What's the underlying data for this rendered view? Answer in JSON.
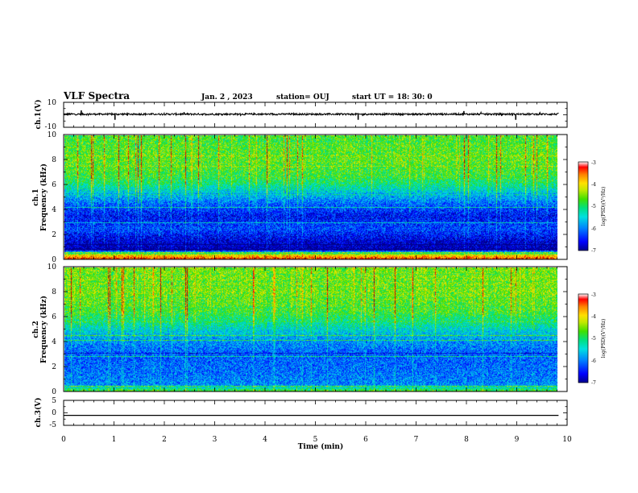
{
  "header": {
    "title": "VLF Spectra",
    "date": "Jan. 2 , 2023",
    "station": "station= OUJ",
    "start": "start UT = 18: 30: 0"
  },
  "colors": {
    "scale": [
      "#00008b",
      "#0000ff",
      "#0080ff",
      "#00e0e0",
      "#00e080",
      "#40e000",
      "#c0e800",
      "#ffe000",
      "#ff8000",
      "#ff0000",
      "#b00000"
    ]
  },
  "chart_data": [
    {
      "id": "ch1-waveform",
      "type": "line",
      "ylabel": "ch.1(V)",
      "ylim": [
        -10,
        10
      ],
      "yticks": [
        "10",
        "-10"
      ],
      "xlim": [
        0,
        10
      ],
      "baseline": 0.5,
      "spikes": [
        {
          "x": 0.35,
          "y": 3.5
        },
        {
          "x": 1.02,
          "y": -4.0
        },
        {
          "x": 5.85,
          "y": -4.0
        },
        {
          "x": 7.95,
          "y": 3.0
        },
        {
          "x": 8.98,
          "y": -4.0
        }
      ]
    },
    {
      "id": "ch1-spectrogram",
      "type": "heatmap",
      "ylabel": "ch.1",
      "ylabel2": "Frequency (kHz)",
      "xlim": [
        0,
        9.83
      ],
      "ylim": [
        0,
        10
      ],
      "yticks": [
        "0",
        "2",
        "4",
        "6",
        "8",
        "10"
      ],
      "colorbar": {
        "label": "log(PSD)(V²/Hz)",
        "range": [
          -7,
          -3
        ],
        "ticks": [
          "-3",
          "-4",
          "-5",
          "-6",
          "-7"
        ]
      },
      "profile": [
        {
          "f": 0.0,
          "v": -3.2
        },
        {
          "f": 0.4,
          "v": -4.2
        },
        {
          "f": 0.8,
          "v": -7.0
        },
        {
          "f": 1.5,
          "v": -6.8
        },
        {
          "f": 2.5,
          "v": -6.3
        },
        {
          "f": 3.5,
          "v": -6.6
        },
        {
          "f": 4.5,
          "v": -6.2
        },
        {
          "f": 5.5,
          "v": -5.6
        },
        {
          "f": 6.5,
          "v": -5.0
        },
        {
          "f": 8.0,
          "v": -4.8
        },
        {
          "f": 10.0,
          "v": -4.9
        }
      ]
    },
    {
      "id": "ch2-spectrogram",
      "type": "heatmap",
      "ylabel": "ch.2",
      "ylabel2": "Frequency (kHz)",
      "xlim": [
        0,
        9.83
      ],
      "ylim": [
        0,
        10
      ],
      "yticks": [
        "0",
        "2",
        "4",
        "6",
        "8",
        "10"
      ],
      "colorbar": {
        "label": "log(PSD)(V²/Hz)",
        "range": [
          -7,
          -3
        ],
        "ticks": [
          "-3",
          "-4",
          "-5",
          "-6",
          "-7"
        ]
      },
      "profile": [
        {
          "f": 0.0,
          "v": -4.6
        },
        {
          "f": 0.6,
          "v": -6.0
        },
        {
          "f": 1.5,
          "v": -6.1
        },
        {
          "f": 3.0,
          "v": -6.2
        },
        {
          "f": 4.3,
          "v": -5.9
        },
        {
          "f": 5.3,
          "v": -5.4
        },
        {
          "f": 6.5,
          "v": -4.9
        },
        {
          "f": 8.0,
          "v": -4.7
        },
        {
          "f": 10.0,
          "v": -4.7
        }
      ]
    },
    {
      "id": "ch3-waveform",
      "type": "line",
      "ylabel": "ch.3(V)",
      "ylim": [
        -5,
        5
      ],
      "yticks": [
        "5",
        "0",
        "-5"
      ],
      "xlim": [
        0,
        10
      ],
      "baseline": -1.0,
      "xlabel": "Time (min)",
      "xticks": [
        "0",
        "1",
        "2",
        "3",
        "4",
        "5",
        "6",
        "7",
        "8",
        "9",
        "10"
      ]
    }
  ]
}
